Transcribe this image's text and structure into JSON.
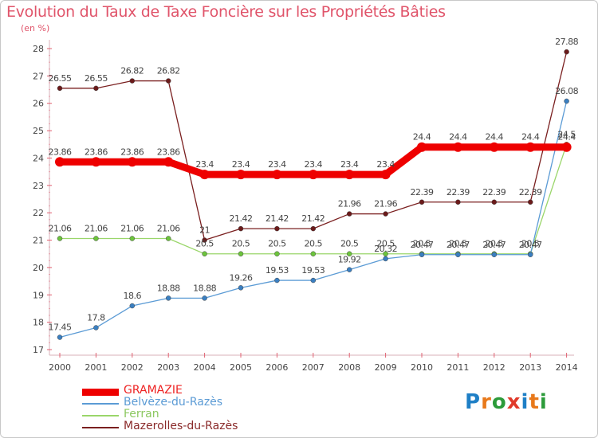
{
  "title": "Evolution du Taux de Taxe Foncière sur les Propriétés Bâties",
  "unit_label": "(en %)",
  "logo": {
    "text": "Proxiti",
    "letters": [
      "P",
      "r",
      "o",
      "x",
      "i",
      "t",
      "i"
    ],
    "colors": [
      "#1e7fc6",
      "#e8791b",
      "#2c9b3a",
      "#e03a2a",
      "#1e7fc6",
      "#e8791b",
      "#2c9b3a"
    ]
  },
  "chart_data": {
    "type": "line",
    "title": "Evolution du Taux de Taxe Foncière sur les Propriétés Bâties",
    "ylabel": "(en %)",
    "xlabel": "",
    "ylim": [
      17,
      28
    ],
    "yticks": [
      17,
      18,
      19,
      20,
      21,
      22,
      23,
      24,
      25,
      26,
      27,
      28
    ],
    "x": [
      "2000",
      "2001",
      "2002",
      "2003",
      "2004",
      "2005",
      "2006",
      "2007",
      "2008",
      "2009",
      "2010",
      "2011",
      "2012",
      "2013",
      "2014"
    ],
    "series": [
      {
        "name": "Mazerolles-du-Razès",
        "color": "#7a1f1f",
        "marker": "#6b1a1a",
        "width": 1.3,
        "values": [
          26.55,
          26.55,
          26.82,
          26.82,
          21,
          21.42,
          21.42,
          21.42,
          21.96,
          21.96,
          22.39,
          22.39,
          22.39,
          22.39,
          27.88
        ],
        "labels": [
          "26.55",
          "26.55",
          "26.82",
          "26.82",
          "21",
          "21.42",
          "21.42",
          "21.42",
          "21.96",
          "21.96",
          "22.39",
          "22.39",
          "22.39",
          "22.39",
          "27.88"
        ]
      },
      {
        "name": "Ferran",
        "color": "#9ad66a",
        "marker": "#6cc43c",
        "width": 1.3,
        "values": [
          21.06,
          21.06,
          21.06,
          21.06,
          20.5,
          20.5,
          20.5,
          20.5,
          20.5,
          20.5,
          20.5,
          20.5,
          20.5,
          20.5,
          24.5
        ],
        "labels": [
          "21.06",
          "21.06",
          "21.06",
          "21.06",
          "20.5",
          "20.5",
          "20.5",
          "20.5",
          "20.5",
          "20.5",
          "20.5",
          "20.5",
          "20.5",
          "20.5",
          "24.5"
        ]
      },
      {
        "name": "Belvèze-du-Razès",
        "color": "#5b9bd5",
        "marker": "#3a7fc1",
        "width": 1.3,
        "values": [
          17.45,
          17.8,
          18.6,
          18.88,
          18.88,
          19.26,
          19.53,
          19.53,
          19.92,
          20.32,
          20.47,
          20.47,
          20.47,
          20.47,
          26.08
        ],
        "labels": [
          "17.45",
          "17.8",
          "18.6",
          "18.88",
          "18.88",
          "19.26",
          "19.53",
          "19.53",
          "19.92",
          "20.32",
          "20.47",
          "20.47",
          "20.47",
          "20.47",
          "26.08"
        ]
      },
      {
        "name": "GRAMAZIE",
        "color": "#ee0000",
        "marker": "#ee0000",
        "width": 9,
        "values": [
          23.86,
          23.86,
          23.86,
          23.86,
          23.4,
          23.4,
          23.4,
          23.4,
          23.4,
          23.4,
          24.4,
          24.4,
          24.4,
          24.4,
          24.4
        ],
        "labels": [
          "23.86",
          "23.86",
          "23.86",
          "23.86",
          "23.4",
          "23.4",
          "23.4",
          "23.4",
          "23.4",
          "23.4",
          "24.4",
          "24.4",
          "24.4",
          "24.4",
          "24.4"
        ]
      }
    ],
    "legend": [
      {
        "name": "GRAMAZIE",
        "color": "#ee0000"
      },
      {
        "name": "Belvèze-du-Razès",
        "color": "#5b9bd5"
      },
      {
        "name": "Ferran",
        "color": "#9ad66a"
      },
      {
        "name": "Mazerolles-du-Razès",
        "color": "#7a1f1f"
      }
    ],
    "legend_position": "bottom-left",
    "grid": false
  }
}
